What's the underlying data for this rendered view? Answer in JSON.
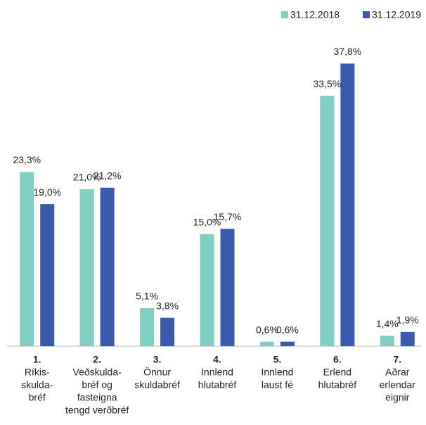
{
  "chart_data": {
    "type": "bar",
    "categories": [
      [
        "1.",
        "Ríkis-",
        "skulda-",
        "bréf"
      ],
      [
        "2.",
        "Veðskulda-",
        "bréf og",
        "fasteigna",
        "tengd verðbréf"
      ],
      [
        "3.",
        "Önnur",
        "skuldabréf"
      ],
      [
        "4.",
        "Innlend",
        "hlutabréf"
      ],
      [
        "5.",
        "Innlend",
        "laust fé"
      ],
      [
        "6.",
        "Erlend",
        "hlutabréf"
      ],
      [
        "7.",
        "Aðrar",
        "erlendar",
        "eignir"
      ]
    ],
    "series": [
      {
        "name": "31.12.2018",
        "color": "#7fcfc5",
        "values": [
          23.3,
          21.0,
          5.1,
          15.0,
          0.6,
          33.5,
          1.4
        ],
        "value_labels": [
          "23,3%",
          "21,0%",
          "5,1%",
          "15,0%",
          "0,6%",
          "33,5%",
          "1,4%"
        ]
      },
      {
        "name": "31.12.2019",
        "color": "#3a5aae",
        "values": [
          19.0,
          21.2,
          3.8,
          15.7,
          0.6,
          37.8,
          1.9
        ],
        "value_labels": [
          "19,0%",
          "21,2%",
          "3,8%",
          "15,7%",
          "0,6%",
          "37,8%",
          "1,9%"
        ]
      }
    ],
    "ylim": [
      0,
      40
    ],
    "legend": "top-right"
  }
}
